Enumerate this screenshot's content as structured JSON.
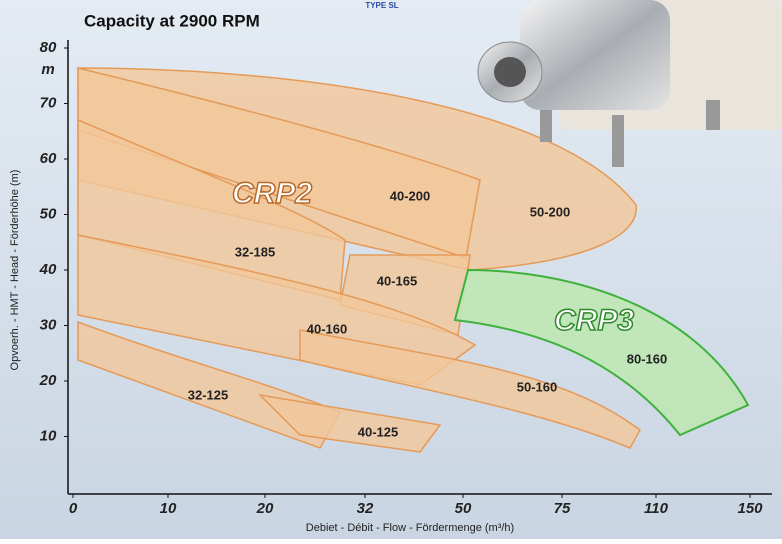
{
  "chart_data": {
    "type": "region",
    "title": "Capacity at 2900 RPM",
    "badge": "TYPE SL",
    "x_label": "Debiet - Débit - Flow - Fördermenge (m³/h)",
    "y_label": "Opvoerh. - HMT - Head - Förderhöhe (m)",
    "y_unit": "m",
    "ylim": [
      0,
      80
    ],
    "yticks": [
      10,
      20,
      30,
      40,
      50,
      60,
      70,
      80
    ],
    "xticks": [
      0,
      10,
      20,
      32,
      50,
      75,
      110,
      150
    ],
    "groups": [
      {
        "name": "CRP2",
        "color": "#f2c79a"
      },
      {
        "name": "CRP3",
        "color": "#bfe6b6"
      }
    ],
    "series": [
      {
        "name": "50-200",
        "group": 0
      },
      {
        "name": "40-200",
        "group": 0
      },
      {
        "name": "32-185",
        "group": 0
      },
      {
        "name": "40-165",
        "group": 0
      },
      {
        "name": "40-160",
        "group": 0
      },
      {
        "name": "50-160",
        "group": 0
      },
      {
        "name": "32-125",
        "group": 0
      },
      {
        "name": "40-125",
        "group": 0
      },
      {
        "name": "80-160",
        "group": 1
      }
    ]
  }
}
